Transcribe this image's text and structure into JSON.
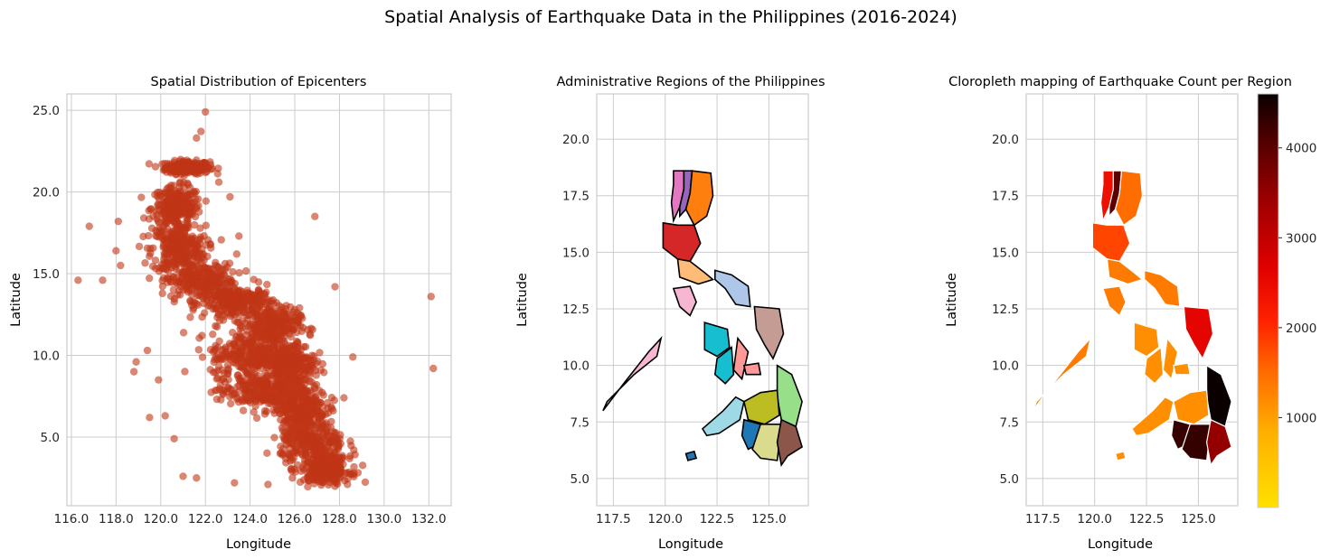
{
  "figure": {
    "title": "Spatial Analysis of Earthquake Data in the Philippines (2016-2024)"
  },
  "chart_data": [
    {
      "type": "scatter",
      "title": "Spatial Distribution of Epicenters",
      "xlabel": "Longitude",
      "ylabel": "Latitude",
      "xlim": [
        115.8,
        133.0
      ],
      "ylim": [
        0.8,
        26.0
      ],
      "xticks": [
        116,
        118,
        120,
        122,
        124,
        126,
        128,
        130,
        132
      ],
      "xtick_labels": [
        "116.0",
        "118.0",
        "120.0",
        "122.0",
        "124.0",
        "126.0",
        "128.0",
        "130.0",
        "132.0"
      ],
      "yticks": [
        5,
        10,
        15,
        20,
        25
      ],
      "ytick_labels": [
        "5.0",
        "10.0",
        "15.0",
        "20.0",
        "25.0"
      ],
      "grid": true,
      "marker_color": "#c03515",
      "marker_alpha": 0.6,
      "dense_band": [
        {
          "lon": 121.2,
          "lat": 21.5,
          "spread_lon": 0.9,
          "spread_lat": 0.35
        },
        {
          "lon": 120.7,
          "lat": 19.0,
          "spread_lon": 1.0,
          "spread_lat": 1.2
        },
        {
          "lon": 120.8,
          "lat": 16.5,
          "spread_lon": 1.1,
          "spread_lat": 1.3
        },
        {
          "lon": 121.8,
          "lat": 14.5,
          "spread_lon": 1.4,
          "spread_lat": 1.0
        },
        {
          "lon": 123.5,
          "lat": 13.2,
          "spread_lon": 1.4,
          "spread_lat": 0.9
        },
        {
          "lon": 125.0,
          "lat": 11.8,
          "spread_lon": 1.1,
          "spread_lat": 1.0
        },
        {
          "lon": 124.0,
          "lat": 10.0,
          "spread_lon": 1.6,
          "spread_lat": 1.2
        },
        {
          "lon": 125.8,
          "lat": 9.5,
          "spread_lon": 1.0,
          "spread_lat": 1.2
        },
        {
          "lon": 124.5,
          "lat": 7.8,
          "spread_lon": 1.8,
          "spread_lat": 1.0
        },
        {
          "lon": 126.3,
          "lat": 6.8,
          "spread_lon": 1.0,
          "spread_lat": 1.3
        },
        {
          "lon": 126.8,
          "lat": 4.6,
          "spread_lon": 1.3,
          "spread_lat": 1.2
        },
        {
          "lon": 127.4,
          "lat": 3.0,
          "spread_lon": 1.0,
          "spread_lat": 0.8
        }
      ],
      "outliers": [
        {
          "x": 122.0,
          "y": 24.9
        },
        {
          "x": 121.8,
          "y": 23.7
        },
        {
          "x": 121.6,
          "y": 23.3
        },
        {
          "x": 116.3,
          "y": 14.6
        },
        {
          "x": 116.8,
          "y": 17.9
        },
        {
          "x": 117.4,
          "y": 14.6
        },
        {
          "x": 118.0,
          "y": 16.4
        },
        {
          "x": 118.1,
          "y": 18.2
        },
        {
          "x": 118.2,
          "y": 15.5
        },
        {
          "x": 118.8,
          "y": 9.0
        },
        {
          "x": 118.9,
          "y": 9.6
        },
        {
          "x": 119.5,
          "y": 6.2
        },
        {
          "x": 120.2,
          "y": 6.3
        },
        {
          "x": 120.6,
          "y": 4.9
        },
        {
          "x": 121.0,
          "y": 2.6
        },
        {
          "x": 121.6,
          "y": 2.5
        },
        {
          "x": 126.9,
          "y": 18.5
        },
        {
          "x": 127.8,
          "y": 14.2
        },
        {
          "x": 132.1,
          "y": 13.6
        },
        {
          "x": 132.2,
          "y": 9.2
        },
        {
          "x": 124.8,
          "y": 2.1
        },
        {
          "x": 128.2,
          "y": 7.4
        },
        {
          "x": 128.6,
          "y": 9.9
        },
        {
          "x": 123.3,
          "y": 2.2
        },
        {
          "x": 119.4,
          "y": 10.3
        },
        {
          "x": 119.9,
          "y": 8.5
        },
        {
          "x": 122.6,
          "y": 20.6
        },
        {
          "x": 123.1,
          "y": 19.7
        },
        {
          "x": 123.5,
          "y": 17.3
        },
        {
          "x": 123.4,
          "y": 16.2
        }
      ]
    },
    {
      "type": "map",
      "title": "Administrative Regions of the Philippines",
      "xlabel": "Longitude",
      "ylabel": "Latitude",
      "xlim": [
        116.7,
        126.9
      ],
      "ylim": [
        3.8,
        22.0
      ],
      "xticks": [
        117.5,
        120.0,
        122.5,
        125.0
      ],
      "xtick_labels": [
        "117.5",
        "120.0",
        "122.5",
        "125.0"
      ],
      "yticks": [
        5,
        7.5,
        10,
        12.5,
        15,
        17.5,
        20
      ],
      "ytick_labels": [
        "5.0",
        "7.5",
        "10.0",
        "12.5",
        "15.0",
        "17.5",
        "20.0"
      ],
      "grid": true,
      "edge_color": "#000000",
      "regions": [
        {
          "id": "ilocos",
          "color": "#e377c2",
          "poly": [
            [
              120.4,
              18.6
            ],
            [
              120.9,
              18.6
            ],
            [
              120.9,
              17.8
            ],
            [
              120.7,
              17.0
            ],
            [
              120.4,
              16.4
            ],
            [
              120.3,
              17.2
            ],
            [
              120.4,
              18.0
            ]
          ]
        },
        {
          "id": "car",
          "color": "#9467bd",
          "poly": [
            [
              120.9,
              18.6
            ],
            [
              121.3,
              18.6
            ],
            [
              121.2,
              17.6
            ],
            [
              121.0,
              16.9
            ],
            [
              120.7,
              16.6
            ],
            [
              120.7,
              17.0
            ],
            [
              120.9,
              17.8
            ]
          ]
        },
        {
          "id": "cagayan",
          "color": "#ff7f0e",
          "poly": [
            [
              121.3,
              18.6
            ],
            [
              122.2,
              18.5
            ],
            [
              122.3,
              17.5
            ],
            [
              122.0,
              16.6
            ],
            [
              121.4,
              16.2
            ],
            [
              121.0,
              16.9
            ],
            [
              121.2,
              17.6
            ]
          ]
        },
        {
          "id": "central-luzon",
          "color": "#d62728",
          "poly": [
            [
              119.9,
              16.3
            ],
            [
              120.6,
              16.2
            ],
            [
              121.4,
              16.2
            ],
            [
              121.7,
              15.4
            ],
            [
              121.2,
              14.6
            ],
            [
              120.6,
              14.7
            ],
            [
              119.9,
              15.2
            ]
          ]
        },
        {
          "id": "calabarzon",
          "color": "#ffbb78",
          "poly": [
            [
              120.6,
              14.7
            ],
            [
              121.2,
              14.6
            ],
            [
              121.9,
              14.1
            ],
            [
              122.3,
              13.8
            ],
            [
              121.6,
              13.6
            ],
            [
              120.7,
              13.9
            ]
          ]
        },
        {
          "id": "bicol",
          "color": "#aec7e8",
          "poly": [
            [
              122.4,
              14.2
            ],
            [
              123.2,
              14.0
            ],
            [
              124.0,
              13.5
            ],
            [
              124.1,
              12.6
            ],
            [
              123.4,
              12.7
            ],
            [
              122.9,
              13.4
            ],
            [
              122.4,
              13.8
            ]
          ]
        },
        {
          "id": "mimaropa-mindoro",
          "color": "#f7b6d2",
          "poly": [
            [
              120.4,
              13.4
            ],
            [
              121.2,
              13.5
            ],
            [
              121.5,
              12.8
            ],
            [
              121.2,
              12.2
            ],
            [
              120.7,
              12.6
            ]
          ]
        },
        {
          "id": "mimaropa-palawan",
          "color": "#f7b6d2",
          "poly": [
            [
              117.2,
              8.4
            ],
            [
              118.5,
              9.6
            ],
            [
              119.6,
              10.4
            ],
            [
              119.8,
              11.2
            ],
            [
              119.2,
              10.6
            ],
            [
              118.0,
              9.2
            ],
            [
              117.0,
              8.0
            ]
          ]
        },
        {
          "id": "western-visayas",
          "color": "#17becf",
          "poly": [
            [
              121.9,
              11.9
            ],
            [
              123.0,
              11.6
            ],
            [
              123.1,
              10.8
            ],
            [
              122.5,
              10.4
            ],
            [
              121.9,
              10.7
            ]
          ]
        },
        {
          "id": "central-visayas",
          "color": "#17becf",
          "poly": [
            [
              122.5,
              10.3
            ],
            [
              123.2,
              10.8
            ],
            [
              123.3,
              9.6
            ],
            [
              122.9,
              9.2
            ],
            [
              122.4,
              9.6
            ]
          ]
        },
        {
          "id": "negros-island",
          "color": "#ff9896",
          "poly": [
            [
              123.5,
              11.2
            ],
            [
              124.0,
              10.6
            ],
            [
              123.7,
              9.4
            ],
            [
              123.3,
              9.8
            ]
          ]
        },
        {
          "id": "eastern-visayas",
          "color": "#c49c94",
          "poly": [
            [
              124.3,
              12.6
            ],
            [
              125.5,
              12.5
            ],
            [
              125.7,
              11.4
            ],
            [
              125.2,
              10.3
            ],
            [
              124.8,
              10.9
            ],
            [
              124.4,
              11.6
            ]
          ]
        },
        {
          "id": "bohol",
          "color": "#ff9896",
          "poly": [
            [
              123.8,
              10.0
            ],
            [
              124.5,
              10.1
            ],
            [
              124.6,
              9.6
            ],
            [
              123.9,
              9.6
            ]
          ]
        },
        {
          "id": "caraga",
          "color": "#98df8a",
          "poly": [
            [
              125.4,
              10.0
            ],
            [
              126.1,
              9.6
            ],
            [
              126.6,
              8.4
            ],
            [
              126.3,
              7.3
            ],
            [
              125.6,
              7.6
            ],
            [
              125.4,
              8.6
            ]
          ]
        },
        {
          "id": "northern-mindanao",
          "color": "#bcbd22",
          "poly": [
            [
              123.8,
              8.4
            ],
            [
              124.6,
              8.8
            ],
            [
              125.4,
              8.9
            ],
            [
              125.5,
              7.8
            ],
            [
              124.8,
              7.4
            ],
            [
              124.0,
              7.6
            ]
          ]
        },
        {
          "id": "zamboanga",
          "color": "#9edae5",
          "poly": [
            [
              121.8,
              7.2
            ],
            [
              122.8,
              8.0
            ],
            [
              123.4,
              8.6
            ],
            [
              123.8,
              8.4
            ],
            [
              123.6,
              7.6
            ],
            [
              122.6,
              7.0
            ],
            [
              122.0,
              6.9
            ]
          ]
        },
        {
          "id": "barmm",
          "color": "#1f77b4",
          "poly": [
            [
              123.8,
              7.6
            ],
            [
              124.6,
              7.4
            ],
            [
              124.7,
              6.6
            ],
            [
              124.0,
              6.3
            ],
            [
              123.7,
              6.9
            ]
          ]
        },
        {
          "id": "soccsksargen",
          "color": "#dbdb8d",
          "poly": [
            [
              124.6,
              7.4
            ],
            [
              125.6,
              7.4
            ],
            [
              125.4,
              5.8
            ],
            [
              124.6,
              5.9
            ],
            [
              124.2,
              6.3
            ]
          ]
        },
        {
          "id": "davao",
          "color": "#8c564b",
          "poly": [
            [
              125.6,
              7.6
            ],
            [
              126.3,
              7.3
            ],
            [
              126.6,
              6.4
            ],
            [
              125.9,
              6.0
            ],
            [
              125.6,
              5.6
            ],
            [
              125.4,
              6.6
            ]
          ]
        },
        {
          "id": "sulu",
          "color": "#1f77b4",
          "poly": [
            [
              121.0,
              6.1
            ],
            [
              121.4,
              6.2
            ],
            [
              121.5,
              5.9
            ],
            [
              121.1,
              5.8
            ]
          ]
        }
      ]
    },
    {
      "type": "choropleth",
      "title": "Cloropleth mapping of Earthquake Count per Region",
      "xlabel": "Longitude",
      "ylabel": "Latitude",
      "xlim": [
        116.7,
        126.9
      ],
      "ylim": [
        3.8,
        22.0
      ],
      "xticks": [
        117.5,
        120.0,
        122.5,
        125.0
      ],
      "xtick_labels": [
        "117.5",
        "120.0",
        "122.5",
        "125.0"
      ],
      "yticks": [
        5,
        7.5,
        10,
        12.5,
        15,
        17.5,
        20
      ],
      "ytick_labels": [
        "5.0",
        "7.5",
        "10.0",
        "12.5",
        "15.0",
        "17.5",
        "20.0"
      ],
      "grid": true,
      "edge_color": "#ffffff",
      "colormap": "hot_r",
      "colorbar": {
        "min": 0,
        "max": 4600,
        "ticks": [
          1000,
          2000,
          3000,
          4000
        ],
        "tick_labels": [
          "1000",
          "2000",
          "3000",
          "4000"
        ]
      },
      "region_counts": {
        "ilocos": 2400,
        "car": 4000,
        "cagayan": 1500,
        "central-luzon": 1800,
        "calabarzon": 1350,
        "bicol": 1350,
        "mimaropa-mindoro": 1350,
        "mimaropa-palawan": 1350,
        "western-visayas": 1150,
        "central-visayas": 1150,
        "negros-island": 1150,
        "eastern-visayas": 2600,
        "bohol": 1150,
        "caraga": 4600,
        "northern-mindanao": 1150,
        "zamboanga": 1150,
        "barmm": 4300,
        "soccsksargen": 4300,
        "davao": 3500,
        "sulu": 1150
      }
    }
  ]
}
